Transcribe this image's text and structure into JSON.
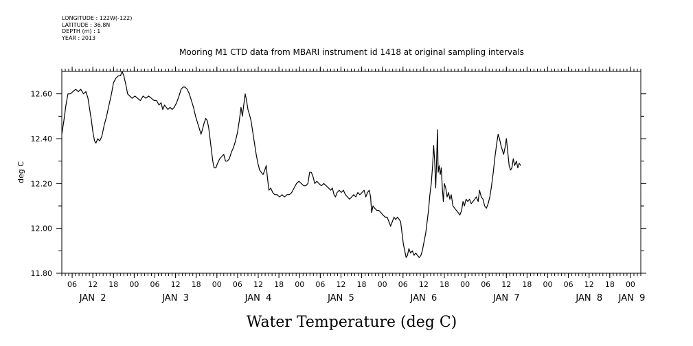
{
  "meta": {
    "longitude": "LONGITUDE : 122W(-122)",
    "latitude": "LATITUDE : 36.8N",
    "depth": "DEPTH (m) : 1",
    "year": "YEAR : 2013"
  },
  "chart_data": {
    "type": "line",
    "title": "Mooring M1 CTD data from MBARI instrument id 1418 at original sampling intervals",
    "xlabel": "Water Temperature (deg C)",
    "ylabel": "deg C",
    "ylim": [
      11.8,
      12.7
    ],
    "y_ticks": [
      "11.80",
      "12.00",
      "12.20",
      "12.40",
      "12.60"
    ],
    "x_unit": "hours since JAN 2 00:00",
    "xlim": [
      3,
      171
    ],
    "x_hour_ticks": [
      {
        "x": 6,
        "label": "06"
      },
      {
        "x": 12,
        "label": "12"
      },
      {
        "x": 18,
        "label": "18"
      },
      {
        "x": 24,
        "label": "00"
      },
      {
        "x": 30,
        "label": "06"
      },
      {
        "x": 36,
        "label": "12"
      },
      {
        "x": 42,
        "label": "18"
      },
      {
        "x": 48,
        "label": "00"
      },
      {
        "x": 54,
        "label": "06"
      },
      {
        "x": 60,
        "label": "12"
      },
      {
        "x": 66,
        "label": "18"
      },
      {
        "x": 72,
        "label": "00"
      },
      {
        "x": 78,
        "label": "06"
      },
      {
        "x": 84,
        "label": "12"
      },
      {
        "x": 90,
        "label": "18"
      },
      {
        "x": 96,
        "label": "00"
      },
      {
        "x": 102,
        "label": "06"
      },
      {
        "x": 108,
        "label": "12"
      },
      {
        "x": 114,
        "label": "18"
      },
      {
        "x": 120,
        "label": "00"
      },
      {
        "x": 126,
        "label": "06"
      },
      {
        "x": 132,
        "label": "12"
      },
      {
        "x": 138,
        "label": "18"
      },
      {
        "x": 144,
        "label": "00"
      },
      {
        "x": 150,
        "label": "06"
      },
      {
        "x": 156,
        "label": "12"
      },
      {
        "x": 162,
        "label": "18"
      },
      {
        "x": 168,
        "label": "00"
      }
    ],
    "x_day_labels": [
      {
        "x": 12,
        "label": "JAN  2"
      },
      {
        "x": 36,
        "label": "JAN  3"
      },
      {
        "x": 60,
        "label": "JAN  4"
      },
      {
        "x": 84,
        "label": "JAN  5"
      },
      {
        "x": 108,
        "label": "JAN  6"
      },
      {
        "x": 132,
        "label": "JAN  7"
      },
      {
        "x": 156,
        "label": "JAN  8"
      },
      {
        "x": 171,
        "label": "JAN  9"
      }
    ],
    "series": [
      {
        "points": [
          [
            3.0,
            12.42
          ],
          [
            3.6,
            12.48
          ],
          [
            4.2,
            12.55
          ],
          [
            4.8,
            12.6
          ],
          [
            5.5,
            12.6
          ],
          [
            6.2,
            12.61
          ],
          [
            7.0,
            12.62
          ],
          [
            7.8,
            12.61
          ],
          [
            8.5,
            12.62
          ],
          [
            9.3,
            12.6
          ],
          [
            10.0,
            12.61
          ],
          [
            10.6,
            12.58
          ],
          [
            11.1,
            12.53
          ],
          [
            11.6,
            12.48
          ],
          [
            12.0,
            12.43
          ],
          [
            12.5,
            12.39
          ],
          [
            12.9,
            12.38
          ],
          [
            13.4,
            12.4
          ],
          [
            14.0,
            12.39
          ],
          [
            14.6,
            12.41
          ],
          [
            15.3,
            12.46
          ],
          [
            16.0,
            12.5
          ],
          [
            16.7,
            12.55
          ],
          [
            17.4,
            12.6
          ],
          [
            18.0,
            12.65
          ],
          [
            18.7,
            12.67
          ],
          [
            19.4,
            12.68
          ],
          [
            20.0,
            12.68
          ],
          [
            20.5,
            12.7
          ],
          [
            21.0,
            12.68
          ],
          [
            21.6,
            12.64
          ],
          [
            22.1,
            12.6
          ],
          [
            22.7,
            12.59
          ],
          [
            23.4,
            12.58
          ],
          [
            24.2,
            12.59
          ],
          [
            25.0,
            12.58
          ],
          [
            25.8,
            12.57
          ],
          [
            26.6,
            12.59
          ],
          [
            27.4,
            12.58
          ],
          [
            28.2,
            12.59
          ],
          [
            29.0,
            12.58
          ],
          [
            29.8,
            12.57
          ],
          [
            30.5,
            12.57
          ],
          [
            31.2,
            12.55
          ],
          [
            31.8,
            12.56
          ],
          [
            32.3,
            12.53
          ],
          [
            32.8,
            12.55
          ],
          [
            33.3,
            12.54
          ],
          [
            33.8,
            12.53
          ],
          [
            34.4,
            12.54
          ],
          [
            35.0,
            12.53
          ],
          [
            35.6,
            12.54
          ],
          [
            36.3,
            12.56
          ],
          [
            37.0,
            12.59
          ],
          [
            37.6,
            12.62
          ],
          [
            38.2,
            12.63
          ],
          [
            38.8,
            12.63
          ],
          [
            39.4,
            12.62
          ],
          [
            40.0,
            12.6
          ],
          [
            40.6,
            12.57
          ],
          [
            41.2,
            12.54
          ],
          [
            41.8,
            12.5
          ],
          [
            42.4,
            12.47
          ],
          [
            43.0,
            12.44
          ],
          [
            43.4,
            12.42
          ],
          [
            43.8,
            12.44
          ],
          [
            44.3,
            12.47
          ],
          [
            44.8,
            12.49
          ],
          [
            45.2,
            12.48
          ],
          [
            45.6,
            12.45
          ],
          [
            46.0,
            12.4
          ],
          [
            46.4,
            12.35
          ],
          [
            46.8,
            12.3
          ],
          [
            47.2,
            12.27
          ],
          [
            47.7,
            12.27
          ],
          [
            48.2,
            12.29
          ],
          [
            48.8,
            12.31
          ],
          [
            49.4,
            12.32
          ],
          [
            50.0,
            12.33
          ],
          [
            50.5,
            12.3
          ],
          [
            51.0,
            12.3
          ],
          [
            51.6,
            12.31
          ],
          [
            52.2,
            12.34
          ],
          [
            52.8,
            12.36
          ],
          [
            53.4,
            12.39
          ],
          [
            54.0,
            12.43
          ],
          [
            54.5,
            12.48
          ],
          [
            55.0,
            12.54
          ],
          [
            55.4,
            12.5
          ],
          [
            55.8,
            12.55
          ],
          [
            56.2,
            12.6
          ],
          [
            56.6,
            12.57
          ],
          [
            57.0,
            12.53
          ],
          [
            57.4,
            12.51
          ],
          [
            57.9,
            12.48
          ],
          [
            58.4,
            12.43
          ],
          [
            58.9,
            12.38
          ],
          [
            59.4,
            12.33
          ],
          [
            59.9,
            12.29
          ],
          [
            60.4,
            12.26
          ],
          [
            60.9,
            12.25
          ],
          [
            61.4,
            12.24
          ],
          [
            61.9,
            12.26
          ],
          [
            62.3,
            12.28
          ],
          [
            62.7,
            12.22
          ],
          [
            63.1,
            12.17
          ],
          [
            63.6,
            12.18
          ],
          [
            64.2,
            12.16
          ],
          [
            64.8,
            12.15
          ],
          [
            65.5,
            12.15
          ],
          [
            66.2,
            12.14
          ],
          [
            66.9,
            12.15
          ],
          [
            67.6,
            12.14
          ],
          [
            68.3,
            12.15
          ],
          [
            69.0,
            12.15
          ],
          [
            69.7,
            12.16
          ],
          [
            70.4,
            12.18
          ],
          [
            71.1,
            12.2
          ],
          [
            71.8,
            12.21
          ],
          [
            72.5,
            12.2
          ],
          [
            73.2,
            12.19
          ],
          [
            73.8,
            12.19
          ],
          [
            74.4,
            12.2
          ],
          [
            74.9,
            12.25
          ],
          [
            75.4,
            12.25
          ],
          [
            75.9,
            12.23
          ],
          [
            76.4,
            12.2
          ],
          [
            77.0,
            12.21
          ],
          [
            77.6,
            12.2
          ],
          [
            78.3,
            12.19
          ],
          [
            79.0,
            12.2
          ],
          [
            79.7,
            12.19
          ],
          [
            80.4,
            12.18
          ],
          [
            81.0,
            12.17
          ],
          [
            81.5,
            12.18
          ],
          [
            82.0,
            12.15
          ],
          [
            82.4,
            12.14
          ],
          [
            82.9,
            12.16
          ],
          [
            83.5,
            12.17
          ],
          [
            84.1,
            12.16
          ],
          [
            84.7,
            12.17
          ],
          [
            85.3,
            12.15
          ],
          [
            85.9,
            12.14
          ],
          [
            86.5,
            12.13
          ],
          [
            87.1,
            12.14
          ],
          [
            87.7,
            12.15
          ],
          [
            88.3,
            12.14
          ],
          [
            88.9,
            12.16
          ],
          [
            89.5,
            12.15
          ],
          [
            90.1,
            12.16
          ],
          [
            90.7,
            12.17
          ],
          [
            91.2,
            12.14
          ],
          [
            91.7,
            12.16
          ],
          [
            92.2,
            12.17
          ],
          [
            92.6,
            12.14
          ],
          [
            92.9,
            12.07
          ],
          [
            93.3,
            12.1
          ],
          [
            93.8,
            12.09
          ],
          [
            94.4,
            12.08
          ],
          [
            95.0,
            12.08
          ],
          [
            95.6,
            12.07
          ],
          [
            96.2,
            12.06
          ],
          [
            96.8,
            12.05
          ],
          [
            97.4,
            12.05
          ],
          [
            97.9,
            12.03
          ],
          [
            98.4,
            12.01
          ],
          [
            98.9,
            12.03
          ],
          [
            99.4,
            12.05
          ],
          [
            99.9,
            12.04
          ],
          [
            100.4,
            12.05
          ],
          [
            100.9,
            12.04
          ],
          [
            101.3,
            12.03
          ],
          [
            101.7,
            11.98
          ],
          [
            102.1,
            11.93
          ],
          [
            102.5,
            11.9
          ],
          [
            102.9,
            11.87
          ],
          [
            103.3,
            11.88
          ],
          [
            103.7,
            11.91
          ],
          [
            104.2,
            11.89
          ],
          [
            104.7,
            11.9
          ],
          [
            105.2,
            11.88
          ],
          [
            105.7,
            11.89
          ],
          [
            106.2,
            11.88
          ],
          [
            106.7,
            11.87
          ],
          [
            107.2,
            11.88
          ],
          [
            107.6,
            11.9
          ],
          [
            108.1,
            11.94
          ],
          [
            108.6,
            11.98
          ],
          [
            109.0,
            12.03
          ],
          [
            109.4,
            12.08
          ],
          [
            109.8,
            12.15
          ],
          [
            110.2,
            12.2
          ],
          [
            110.6,
            12.28
          ],
          [
            110.9,
            12.37
          ],
          [
            111.2,
            12.3
          ],
          [
            111.5,
            12.18
          ],
          [
            111.8,
            12.32
          ],
          [
            112.0,
            12.44
          ],
          [
            112.2,
            12.25
          ],
          [
            112.5,
            12.28
          ],
          [
            112.8,
            12.24
          ],
          [
            113.1,
            12.27
          ],
          [
            113.4,
            12.18
          ],
          [
            113.7,
            12.12
          ],
          [
            114.0,
            12.2
          ],
          [
            114.4,
            12.18
          ],
          [
            114.8,
            12.14
          ],
          [
            115.2,
            12.16
          ],
          [
            115.6,
            12.13
          ],
          [
            116.0,
            12.15
          ],
          [
            116.5,
            12.1
          ],
          [
            117.0,
            12.09
          ],
          [
            117.5,
            12.08
          ],
          [
            118.0,
            12.07
          ],
          [
            118.5,
            12.06
          ],
          [
            119.0,
            12.08
          ],
          [
            119.4,
            12.12
          ],
          [
            119.8,
            12.1
          ],
          [
            120.3,
            12.13
          ],
          [
            120.8,
            12.12
          ],
          [
            121.3,
            12.13
          ],
          [
            121.8,
            12.11
          ],
          [
            122.3,
            12.12
          ],
          [
            122.8,
            12.13
          ],
          [
            123.3,
            12.14
          ],
          [
            123.8,
            12.12
          ],
          [
            124.2,
            12.17
          ],
          [
            124.7,
            12.14
          ],
          [
            125.2,
            12.13
          ],
          [
            125.7,
            12.1
          ],
          [
            126.2,
            12.09
          ],
          [
            126.7,
            12.11
          ],
          [
            127.2,
            12.14
          ],
          [
            127.7,
            12.19
          ],
          [
            128.2,
            12.25
          ],
          [
            128.7,
            12.32
          ],
          [
            129.2,
            12.38
          ],
          [
            129.6,
            12.42
          ],
          [
            130.0,
            12.4
          ],
          [
            130.4,
            12.37
          ],
          [
            130.8,
            12.35
          ],
          [
            131.2,
            12.33
          ],
          [
            131.6,
            12.36
          ],
          [
            132.0,
            12.4
          ],
          [
            132.4,
            12.34
          ],
          [
            132.8,
            12.28
          ],
          [
            133.2,
            12.26
          ],
          [
            133.6,
            12.27
          ],
          [
            134.0,
            12.31
          ],
          [
            134.4,
            12.28
          ],
          [
            134.9,
            12.3
          ],
          [
            135.3,
            12.27
          ],
          [
            135.7,
            12.29
          ],
          [
            136.2,
            12.28
          ]
        ]
      }
    ]
  }
}
